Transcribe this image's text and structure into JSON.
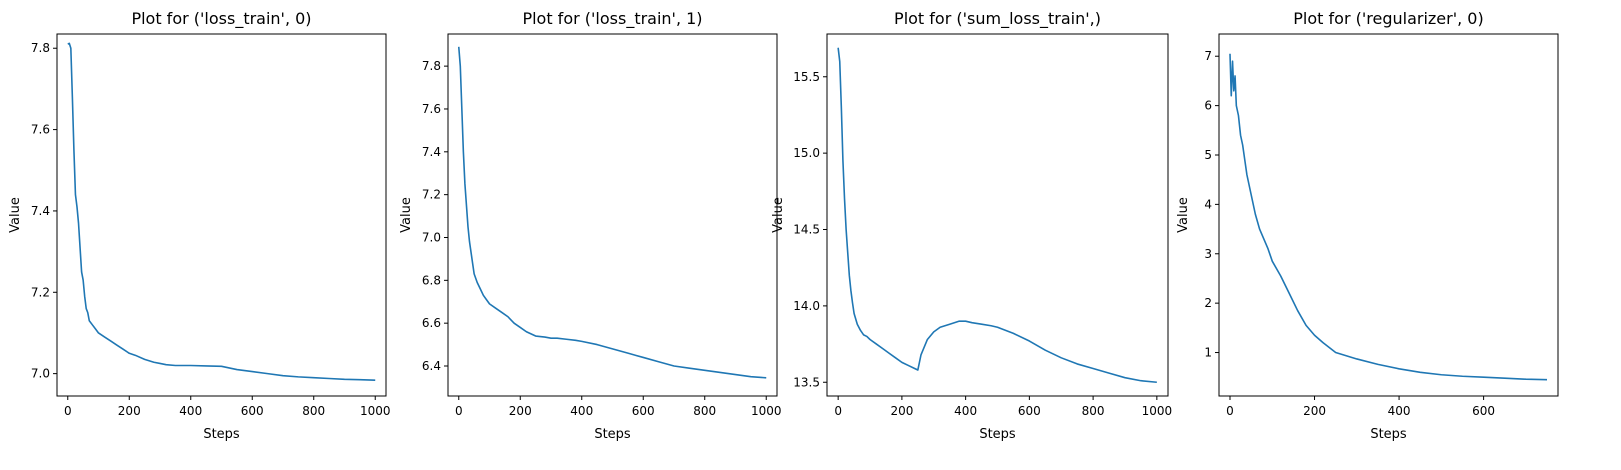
{
  "chart_data": [
    {
      "type": "line",
      "title": "Plot for ('loss_train', 0)",
      "xlabel": "Steps",
      "ylabel": "Value",
      "xlim": [
        -35,
        1035
      ],
      "ylim": [
        6.945,
        7.835
      ],
      "xticks": [
        0,
        200,
        400,
        600,
        800,
        1000
      ],
      "yticks": [
        7.0,
        7.2,
        7.4,
        7.6,
        7.8
      ],
      "ytick_decimals": 1,
      "line_color": "#1f77b4",
      "series": [
        {
          "x": [
            0,
            5,
            10,
            15,
            20,
            25,
            30,
            35,
            40,
            45,
            50,
            55,
            60,
            65,
            70,
            80,
            90,
            100,
            120,
            140,
            160,
            180,
            200,
            220,
            250,
            280,
            300,
            320,
            350,
            380,
            400,
            450,
            500,
            550,
            600,
            650,
            700,
            750,
            800,
            850,
            900,
            950,
            1000
          ],
          "y": [
            7.81,
            7.812,
            7.8,
            7.68,
            7.55,
            7.44,
            7.41,
            7.37,
            7.31,
            7.25,
            7.23,
            7.19,
            7.16,
            7.15,
            7.13,
            7.12,
            7.11,
            7.1,
            7.09,
            7.08,
            7.07,
            7.06,
            7.05,
            7.045,
            7.035,
            7.028,
            7.025,
            7.022,
            7.02,
            7.02,
            7.02,
            7.019,
            7.018,
            7.01,
            7.005,
            7.0,
            6.995,
            6.992,
            6.99,
            6.988,
            6.986,
            6.985,
            6.984
          ]
        }
      ]
    },
    {
      "type": "line",
      "title": "Plot for ('loss_train', 1)",
      "xlabel": "Steps",
      "ylabel": "Value",
      "xlim": [
        -35,
        1035
      ],
      "ylim": [
        6.26,
        7.95
      ],
      "xticks": [
        0,
        200,
        400,
        600,
        800,
        1000
      ],
      "yticks": [
        6.4,
        6.6,
        6.8,
        7.0,
        7.2,
        7.4,
        7.6,
        7.8
      ],
      "ytick_decimals": 1,
      "line_color": "#1f77b4",
      "series": [
        {
          "x": [
            0,
            5,
            10,
            15,
            20,
            25,
            30,
            35,
            40,
            45,
            50,
            60,
            70,
            80,
            90,
            100,
            120,
            140,
            160,
            180,
            200,
            220,
            250,
            280,
            300,
            320,
            350,
            380,
            400,
            450,
            500,
            550,
            600,
            650,
            700,
            750,
            800,
            850,
            900,
            950,
            1000
          ],
          "y": [
            7.89,
            7.8,
            7.6,
            7.4,
            7.25,
            7.15,
            7.05,
            6.98,
            6.93,
            6.88,
            6.83,
            6.79,
            6.76,
            6.73,
            6.71,
            6.69,
            6.67,
            6.65,
            6.63,
            6.6,
            6.58,
            6.56,
            6.54,
            6.535,
            6.53,
            6.53,
            6.525,
            6.52,
            6.515,
            6.5,
            6.48,
            6.46,
            6.44,
            6.42,
            6.4,
            6.39,
            6.38,
            6.37,
            6.36,
            6.35,
            6.345
          ]
        }
      ]
    },
    {
      "type": "line",
      "title": "Plot for ('sum_loss_train',)",
      "xlabel": "Steps",
      "ylabel": "Value",
      "xlim": [
        -35,
        1035
      ],
      "ylim": [
        13.41,
        15.78
      ],
      "xticks": [
        0,
        200,
        400,
        600,
        800,
        1000
      ],
      "yticks": [
        13.5,
        14.0,
        14.5,
        15.0,
        15.5
      ],
      "ytick_decimals": 1,
      "line_color": "#1f77b4",
      "series": [
        {
          "x": [
            0,
            5,
            10,
            15,
            20,
            25,
            30,
            35,
            40,
            45,
            50,
            60,
            70,
            80,
            90,
            100,
            120,
            140,
            160,
            180,
            200,
            220,
            240,
            250,
            260,
            280,
            300,
            320,
            350,
            380,
            400,
            420,
            450,
            480,
            500,
            550,
            600,
            650,
            700,
            750,
            800,
            850,
            900,
            950,
            1000
          ],
          "y": [
            15.69,
            15.6,
            15.3,
            14.95,
            14.7,
            14.5,
            14.35,
            14.2,
            14.1,
            14.02,
            13.95,
            13.88,
            13.84,
            13.81,
            13.8,
            13.78,
            13.75,
            13.72,
            13.69,
            13.66,
            13.63,
            13.61,
            13.59,
            13.58,
            13.68,
            13.78,
            13.83,
            13.86,
            13.88,
            13.9,
            13.9,
            13.89,
            13.88,
            13.87,
            13.86,
            13.82,
            13.77,
            13.71,
            13.66,
            13.62,
            13.59,
            13.56,
            13.53,
            13.51,
            13.5
          ]
        }
      ]
    },
    {
      "type": "line",
      "title": "Plot for ('regularizer', 0)",
      "xlabel": "Steps",
      "ylabel": "Value",
      "xlim": [
        -26,
        776
      ],
      "ylim": [
        0.12,
        7.45
      ],
      "xticks": [
        0,
        200,
        400,
        600
      ],
      "yticks": [
        1,
        2,
        3,
        4,
        5,
        6,
        7
      ],
      "ytick_decimals": 0,
      "line_color": "#1f77b4",
      "series": [
        {
          "x": [
            0,
            3,
            6,
            9,
            12,
            15,
            20,
            25,
            30,
            35,
            40,
            45,
            50,
            60,
            70,
            80,
            90,
            100,
            120,
            140,
            160,
            180,
            200,
            220,
            250,
            300,
            350,
            400,
            450,
            500,
            550,
            600,
            650,
            700,
            750
          ],
          "y": [
            7.05,
            6.2,
            6.9,
            6.3,
            6.6,
            6.0,
            5.8,
            5.4,
            5.2,
            4.9,
            4.6,
            4.4,
            4.2,
            3.8,
            3.5,
            3.3,
            3.1,
            2.85,
            2.55,
            2.2,
            1.85,
            1.55,
            1.35,
            1.2,
            1.0,
            0.87,
            0.76,
            0.67,
            0.6,
            0.55,
            0.52,
            0.5,
            0.48,
            0.46,
            0.45
          ]
        }
      ]
    }
  ]
}
